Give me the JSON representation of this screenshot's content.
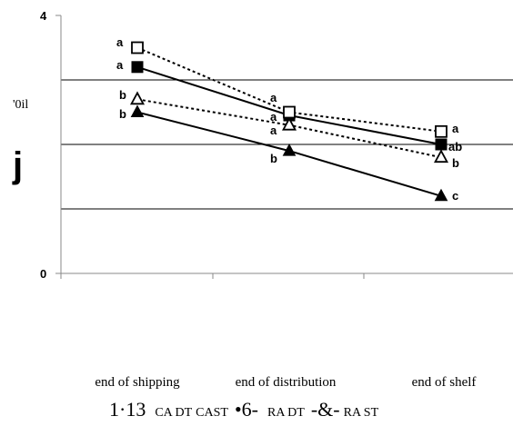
{
  "chart_data": {
    "type": "line",
    "categories": [
      "end of shipping",
      "end of distribution",
      "end of shelf"
    ],
    "ylim": [
      0,
      4
    ],
    "y_ticks": [
      "0",
      "4"
    ],
    "ylabel_small": "'0il",
    "ylabel_big": "j",
    "grid": true,
    "series": [
      {
        "name": "CA DT",
        "style": "solid",
        "marker": "filled-square",
        "values": [
          3.2,
          2.45,
          2.0
        ],
        "letters": [
          "a",
          "a",
          "ab"
        ]
      },
      {
        "name": "CAST",
        "style": "solid",
        "marker": "filled-triangle",
        "values": [
          2.5,
          1.9,
          1.2
        ],
        "letters": [
          "b",
          "b",
          "c"
        ]
      },
      {
        "name": "RA DT",
        "style": "dotted",
        "marker": "open-square",
        "values": [
          3.5,
          2.5,
          2.2
        ],
        "letters": [
          "a",
          "a",
          "a"
        ]
      },
      {
        "name": "RA ST",
        "style": "dotted",
        "marker": "open-triangle",
        "values": [
          2.7,
          2.3,
          1.8
        ],
        "letters": [
          "b",
          "a",
          "b"
        ]
      }
    ],
    "legend": {
      "prefix": "1·13",
      "items": [
        "CA DT",
        "CAST",
        "•6-",
        "RA DT",
        "-&-",
        "RA ST"
      ]
    }
  }
}
